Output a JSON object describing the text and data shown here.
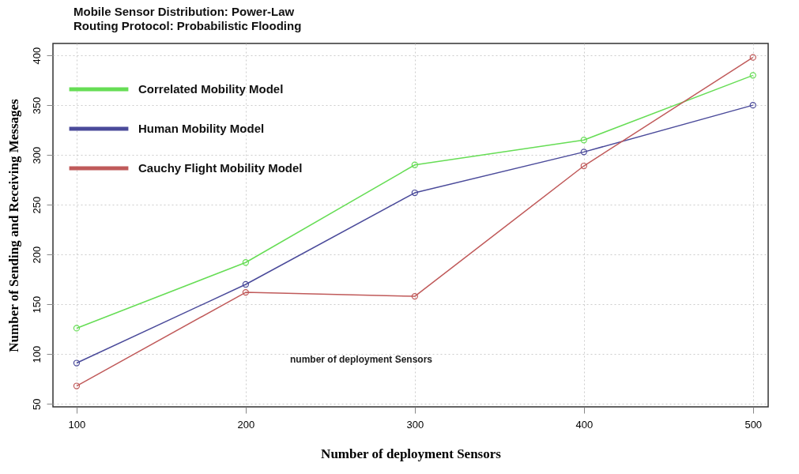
{
  "chart_data": {
    "type": "line",
    "title": "Mobile Sensor Distribution: Power-Law",
    "subtitle": "Routing Protocol: Probabilistic Flooding",
    "xlabel": "Number of deployment Sensors",
    "ylabel": "Number of Sending and Receiving Messages",
    "annotations": [
      "number of deployment Sensors"
    ],
    "x": [
      100,
      200,
      300,
      400,
      500
    ],
    "series": [
      {
        "name": "Correlated Mobility Model",
        "color": "#66dd55",
        "values": [
          126,
          192,
          290,
          315,
          380
        ]
      },
      {
        "name": "Human Mobility Model",
        "color": "#4a4a9a",
        "values": [
          91,
          170,
          262,
          303,
          350
        ]
      },
      {
        "name": "Cauchy Flight Mobility Model",
        "color": "#c05a5a",
        "values": [
          68,
          162,
          158,
          289,
          398
        ]
      }
    ],
    "xlim": [
      86,
      509
    ],
    "ylim": [
      47,
      412
    ],
    "xticks": [
      100,
      200,
      300,
      400,
      500
    ],
    "yticks": [
      50,
      100,
      150,
      200,
      250,
      300,
      350,
      400
    ],
    "grid": true,
    "legend": "top left",
    "marker": "circle"
  }
}
